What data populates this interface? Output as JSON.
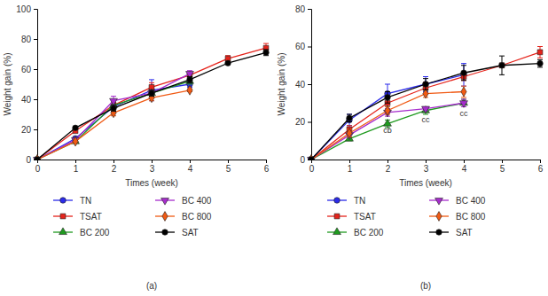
{
  "chart_data": [
    {
      "type": "line",
      "title": "(a)",
      "xlabel": "Times (week)",
      "ylabel": "Weight gain (%)",
      "x": [
        0,
        1,
        2,
        3,
        4,
        5,
        6
      ],
      "xlim": [
        0,
        6
      ],
      "xticks": [
        0,
        1,
        2,
        3,
        4,
        5,
        6
      ],
      "ylim": [
        0,
        100
      ],
      "yticks": [
        0,
        20,
        40,
        60,
        80,
        100
      ],
      "legend": "bottom",
      "series": [
        {
          "name": "TN",
          "color": "#2b2bea",
          "marker": "circle",
          "values": [
            0,
            14,
            35,
            46,
            50,
            null,
            null
          ],
          "errors": [
            0,
            1,
            3,
            7,
            2,
            null,
            null
          ]
        },
        {
          "name": "TSAT",
          "color": "#e5231b",
          "marker": "square",
          "values": [
            0,
            19,
            36,
            48,
            56,
            67,
            74
          ],
          "errors": [
            0,
            1,
            2,
            3,
            2,
            2,
            3
          ]
        },
        {
          "name": "BC 200",
          "color": "#1f9a1f",
          "marker": "triangle-up",
          "values": [
            0,
            12,
            36,
            44,
            52,
            null,
            null
          ],
          "errors": [
            0,
            1,
            3,
            2,
            2,
            null,
            null
          ]
        },
        {
          "name": "BC 400",
          "color": "#a62ccc",
          "marker": "triangle-down",
          "values": [
            0,
            13,
            39,
            44,
            57,
            null,
            null
          ],
          "errors": [
            0,
            1,
            3,
            2,
            2,
            null,
            null
          ]
        },
        {
          "name": "BC 800",
          "color": "#f05a14",
          "marker": "diamond",
          "values": [
            0,
            12,
            31,
            41,
            46,
            null,
            null
          ],
          "errors": [
            0,
            1,
            2,
            2,
            1,
            null,
            null
          ]
        },
        {
          "name": "SAT",
          "color": "#000000",
          "marker": "circle",
          "values": [
            0,
            21,
            34,
            44,
            53,
            64,
            71
          ],
          "errors": [
            0,
            1,
            2,
            2,
            2,
            1,
            2
          ]
        }
      ]
    },
    {
      "type": "line",
      "title": "(b)",
      "xlabel": "Times (week)",
      "ylabel": "Weight gain (%)",
      "x": [
        0,
        1,
        2,
        3,
        4,
        5,
        6
      ],
      "xlim": [
        0,
        6
      ],
      "xticks": [
        0,
        1,
        2,
        3,
        4,
        5,
        6
      ],
      "ylim": [
        0,
        80
      ],
      "yticks": [
        0,
        20,
        40,
        60,
        80
      ],
      "legend": "bottom",
      "annotations": [
        {
          "text": "cb",
          "x": 2,
          "y": 14
        },
        {
          "text": "cc",
          "x": 3,
          "y": 20
        },
        {
          "text": "cc",
          "x": 4,
          "y": 23
        }
      ],
      "series": [
        {
          "name": "TN",
          "color": "#2b2bea",
          "marker": "circle",
          "values": [
            0,
            21,
            35,
            40,
            45,
            null,
            null
          ],
          "errors": [
            0,
            3,
            5,
            4,
            6,
            null,
            null
          ]
        },
        {
          "name": "TSAT",
          "color": "#e5231b",
          "marker": "square",
          "values": [
            0,
            16,
            30,
            38,
            44,
            50,
            57
          ],
          "errors": [
            0,
            2,
            3,
            3,
            2,
            1,
            3
          ]
        },
        {
          "name": "BC 200",
          "color": "#1f9a1f",
          "marker": "triangle-up",
          "values": [
            0,
            11,
            19,
            26,
            30,
            null,
            null
          ],
          "errors": [
            0,
            1,
            2,
            2,
            2,
            null,
            null
          ]
        },
        {
          "name": "BC 400",
          "color": "#a62ccc",
          "marker": "triangle-down",
          "values": [
            0,
            13,
            25,
            27,
            30,
            null,
            null
          ],
          "errors": [
            0,
            1,
            2,
            1,
            2,
            null,
            null
          ]
        },
        {
          "name": "BC 800",
          "color": "#f05a14",
          "marker": "diamond",
          "values": [
            0,
            14,
            26,
            35,
            36,
            null,
            null
          ],
          "errors": [
            0,
            2,
            2,
            2,
            3,
            null,
            null
          ]
        },
        {
          "name": "SAT",
          "color": "#000000",
          "marker": "circle",
          "values": [
            0,
            22,
            33,
            40,
            46,
            50,
            51
          ],
          "errors": [
            0,
            2,
            3,
            3,
            4,
            5,
            2
          ]
        }
      ]
    }
  ]
}
